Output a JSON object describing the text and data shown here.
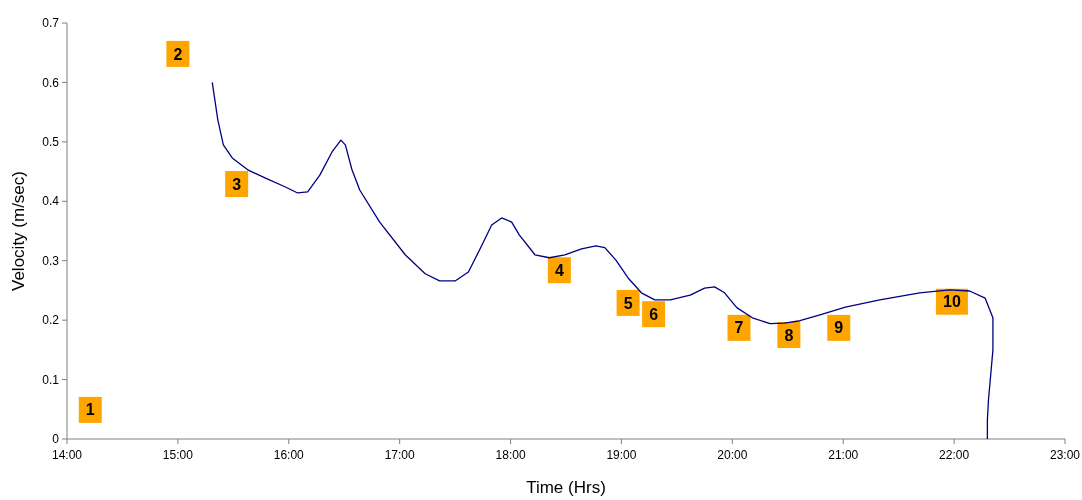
{
  "chart_data": {
    "type": "line",
    "xlabel": "Time (Hrs)",
    "ylabel": "Velocity (m/sec)",
    "xlim": [
      14,
      23
    ],
    "xticks": [
      {
        "value": 14,
        "label": "14:00"
      },
      {
        "value": 15,
        "label": "15:00"
      },
      {
        "value": 16,
        "label": "16:00"
      },
      {
        "value": 17,
        "label": "17:00"
      },
      {
        "value": 18,
        "label": "18:00"
      },
      {
        "value": 19,
        "label": "19:00"
      },
      {
        "value": 20,
        "label": "20:00"
      },
      {
        "value": 21,
        "label": "21:00"
      },
      {
        "value": 22,
        "label": "22:00"
      },
      {
        "value": 23,
        "label": "23:00"
      }
    ],
    "ylim": [
      0,
      0.7
    ],
    "yticks": [
      0,
      0.1,
      0.2,
      0.3,
      0.4,
      0.5,
      0.6,
      0.7
    ],
    "grid": false,
    "marker": "none",
    "line_style": "solid",
    "series": [
      {
        "color": "#000080",
        "x": [
          15.31,
          15.36,
          15.41,
          15.49,
          15.63,
          15.79,
          15.97,
          16.08,
          16.17,
          16.28,
          16.39,
          16.47,
          16.51,
          16.57,
          16.64,
          16.82,
          17.05,
          17.23,
          17.36,
          17.5,
          17.62,
          17.72,
          17.83,
          17.92,
          18.01,
          18.08,
          18.22,
          18.35,
          18.49,
          18.64,
          18.77,
          18.85,
          18.95,
          19.06,
          19.18,
          19.3,
          19.44,
          19.62,
          19.75,
          19.84,
          19.93,
          20.04,
          20.18,
          20.34,
          20.47,
          20.61,
          20.79,
          21.02,
          21.33,
          21.69,
          21.96,
          22.14,
          22.28,
          22.35,
          22.35,
          22.31,
          22.3,
          22.3
        ],
        "values": [
          0.6,
          0.537,
          0.495,
          0.473,
          0.453,
          0.439,
          0.424,
          0.414,
          0.416,
          0.444,
          0.483,
          0.503,
          0.495,
          0.453,
          0.419,
          0.365,
          0.31,
          0.278,
          0.266,
          0.266,
          0.281,
          0.318,
          0.36,
          0.372,
          0.365,
          0.343,
          0.31,
          0.305,
          0.31,
          0.32,
          0.325,
          0.322,
          0.301,
          0.271,
          0.246,
          0.234,
          0.234,
          0.242,
          0.254,
          0.256,
          0.246,
          0.221,
          0.204,
          0.194,
          0.195,
          0.199,
          0.209,
          0.222,
          0.234,
          0.246,
          0.251,
          0.249,
          0.237,
          0.204,
          0.15,
          0.066,
          0.032,
          0
        ]
      }
    ],
    "annotations": [
      {
        "text": "1",
        "x": 14.21,
        "y": 0.049
      },
      {
        "text": "2",
        "x": 15.0,
        "y": 0.648
      },
      {
        "text": "3",
        "x": 15.53,
        "y": 0.429
      },
      {
        "text": "4",
        "x": 18.44,
        "y": 0.284
      },
      {
        "text": "5",
        "x": 19.06,
        "y": 0.229
      },
      {
        "text": "6",
        "x": 19.29,
        "y": 0.21
      },
      {
        "text": "7",
        "x": 20.06,
        "y": 0.187
      },
      {
        "text": "8",
        "x": 20.51,
        "y": 0.175
      },
      {
        "text": "9",
        "x": 20.96,
        "y": 0.187
      },
      {
        "text": "10",
        "x": 21.98,
        "y": 0.231
      }
    ]
  }
}
